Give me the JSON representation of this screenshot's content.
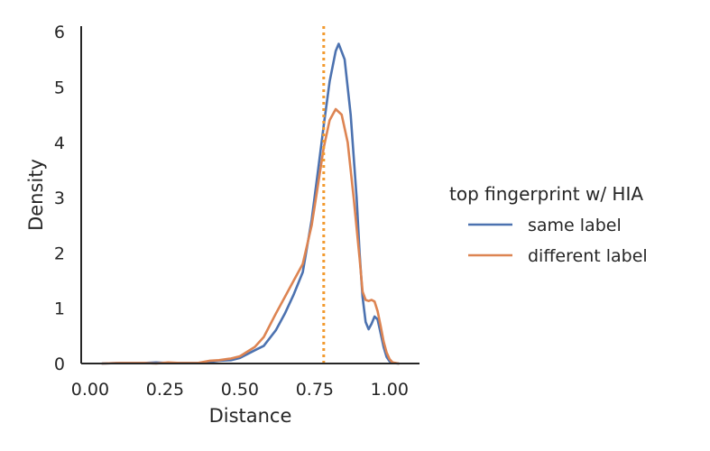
{
  "chart_data": {
    "type": "line",
    "xlabel": "Distance",
    "ylabel": "Density",
    "xlim": [
      -0.03,
      1.1
    ],
    "ylim": [
      0,
      6.1
    ],
    "xticks": [
      "0.00",
      "0.25",
      "0.50",
      "0.75",
      "1.00"
    ],
    "xtick_values": [
      0.0,
      0.25,
      0.5,
      0.75,
      1.0
    ],
    "yticks": [
      "0",
      "1",
      "2",
      "3",
      "4",
      "5",
      "6"
    ],
    "ytick_values": [
      0,
      1,
      2,
      3,
      4,
      5,
      6
    ],
    "grid": false,
    "legend": {
      "title": "top fingerprint w/ HIA",
      "placement": "right"
    },
    "reference_line": {
      "orientation": "vertical",
      "x": 0.78,
      "style": "dotted",
      "color": "#f29a2e"
    },
    "series": [
      {
        "name": "same label",
        "color": "#4c72b0",
        "x": [
          0.04,
          0.1,
          0.18,
          0.22,
          0.26,
          0.3,
          0.36,
          0.4,
          0.43,
          0.47,
          0.5,
          0.55,
          0.58,
          0.62,
          0.65,
          0.68,
          0.71,
          0.74,
          0.76,
          0.78,
          0.8,
          0.82,
          0.83,
          0.85,
          0.87,
          0.89,
          0.9,
          0.91,
          0.92,
          0.93,
          0.94,
          0.95,
          0.96,
          0.97,
          0.98,
          0.99,
          1.0,
          1.01,
          1.03
        ],
        "y": [
          0.0,
          0.01,
          0.01,
          0.02,
          0.01,
          0.01,
          0.01,
          0.03,
          0.05,
          0.06,
          0.1,
          0.24,
          0.32,
          0.6,
          0.9,
          1.25,
          1.65,
          2.6,
          3.45,
          4.3,
          5.1,
          5.65,
          5.78,
          5.5,
          4.5,
          3.0,
          2.0,
          1.2,
          0.75,
          0.62,
          0.72,
          0.85,
          0.8,
          0.55,
          0.3,
          0.12,
          0.04,
          0.01,
          0.0
        ]
      },
      {
        "name": "different label",
        "color": "#dd8452",
        "x": [
          0.04,
          0.1,
          0.18,
          0.22,
          0.26,
          0.3,
          0.36,
          0.4,
          0.43,
          0.47,
          0.5,
          0.55,
          0.58,
          0.62,
          0.65,
          0.68,
          0.71,
          0.74,
          0.76,
          0.78,
          0.8,
          0.82,
          0.84,
          0.86,
          0.88,
          0.9,
          0.91,
          0.92,
          0.93,
          0.94,
          0.95,
          0.96,
          0.97,
          0.98,
          0.99,
          1.0,
          1.01,
          1.03
        ],
        "y": [
          0.0,
          0.01,
          0.01,
          0.0,
          0.02,
          0.01,
          0.01,
          0.05,
          0.06,
          0.09,
          0.13,
          0.3,
          0.48,
          0.9,
          1.2,
          1.5,
          1.8,
          2.5,
          3.2,
          3.9,
          4.4,
          4.6,
          4.5,
          4.0,
          3.0,
          1.9,
          1.3,
          1.15,
          1.13,
          1.15,
          1.12,
          0.95,
          0.68,
          0.4,
          0.2,
          0.08,
          0.02,
          0.0
        ]
      }
    ]
  }
}
